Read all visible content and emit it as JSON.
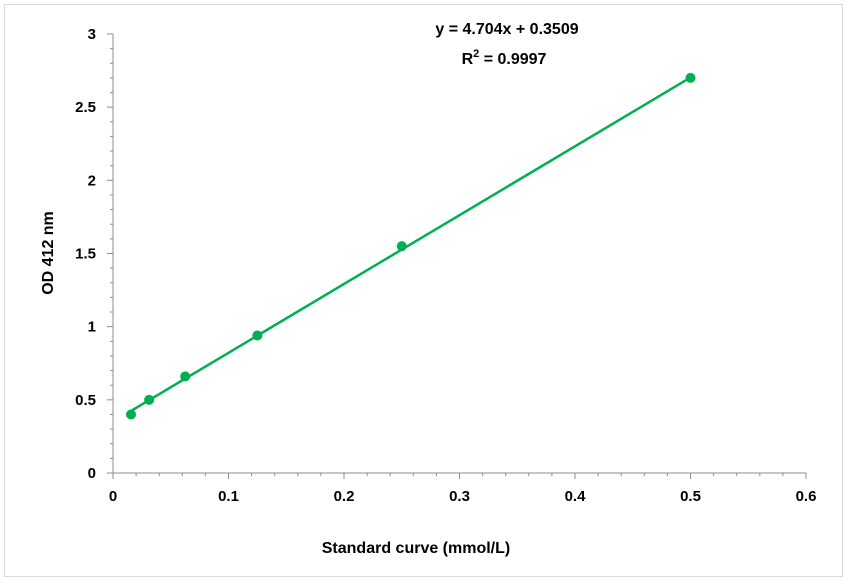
{
  "chart_data": {
    "type": "scatter",
    "title": "",
    "xlabel": "Standard curve (mmol/L)",
    "ylabel": "OD 412 nm",
    "xlim": [
      0,
      0.6
    ],
    "ylim": [
      0,
      3
    ],
    "x_ticks": [
      0,
      0.1,
      0.2,
      0.3,
      0.4,
      0.5,
      0.6
    ],
    "y_ticks": [
      0,
      0.5,
      1,
      1.5,
      2,
      2.5,
      3
    ],
    "x_tick_labels": [
      "0",
      "0.1",
      "0.2",
      "0.3",
      "0.4",
      "0.5",
      "0.6"
    ],
    "y_tick_labels": [
      "0",
      "0.5",
      "1",
      "1.5",
      "2",
      "2.5",
      "3"
    ],
    "grid": false,
    "legend": "none",
    "series": [
      {
        "color": "#00b050",
        "x": [
          0.0156,
          0.0313,
          0.0625,
          0.125,
          0.25,
          0.5
        ],
        "y": [
          0.4,
          0.5,
          0.66,
          0.94,
          1.55,
          2.7
        ]
      }
    ],
    "trendline": {
      "type": "linear",
      "slope": 4.704,
      "intercept": 0.3509,
      "x_range": [
        0.0156,
        0.5
      ],
      "color": "#00b050"
    },
    "annotations": {
      "equation": "y = 4.704x + 0.3509",
      "r2_prefix": "R",
      "r2_superscript": "2",
      "r2_value": " = 0.9997"
    }
  }
}
